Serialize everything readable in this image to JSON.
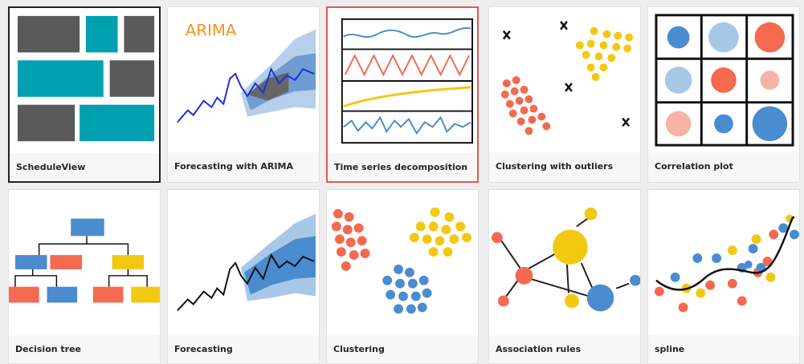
{
  "tiles": [
    {
      "label": "ScheduleView"
    },
    {
      "label": "Forecasting with ARIMA",
      "thumbnail_text": "ARIMA"
    },
    {
      "label": "Time series decomposition"
    },
    {
      "label": "Clustering with outliers"
    },
    {
      "label": "Correlation plot"
    },
    {
      "label": "Decision tree"
    },
    {
      "label": "Forecasting"
    },
    {
      "label": "Clustering"
    },
    {
      "label": "Association rules"
    },
    {
      "label": "spline"
    }
  ]
}
